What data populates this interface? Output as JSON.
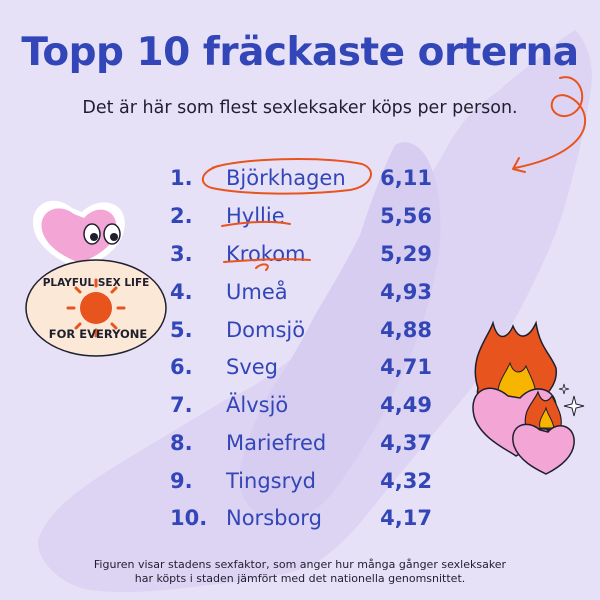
{
  "title": "Topp 10 fräckaste orterna",
  "subtitle": "Det är här som flest sexleksaker köps per person.",
  "rows": [
    {
      "rank": "1.",
      "city": "Björkhagen",
      "value": "6,11"
    },
    {
      "rank": "2.",
      "city": "Hyllie",
      "value": "5,56"
    },
    {
      "rank": "3.",
      "city": "Krokom",
      "value": "5,29"
    },
    {
      "rank": "4.",
      "city": "Umeå",
      "value": "4,93"
    },
    {
      "rank": "5.",
      "city": "Domsjö",
      "value": "4,88"
    },
    {
      "rank": "6.",
      "city": "Sveg",
      "value": "4,71"
    },
    {
      "rank": "7.",
      "city": "Älvsjö",
      "value": "4,49"
    },
    {
      "rank": "8.",
      "city": "Mariefred",
      "value": "4,37"
    },
    {
      "rank": "9.",
      "city": "Tingsryd",
      "value": "4,32"
    },
    {
      "rank": "10.",
      "city": "Norsborg",
      "value": "4,17"
    }
  ],
  "footnote": {
    "line1": "Figuren visar stadens sexfaktor, som anger hur många gånger sexleksaker",
    "line2": "har köpts i staden jämfört med det nationella genomsnittet."
  },
  "sticker": {
    "line1": "PLAYFUL SEX LIFE",
    "line2": "FOR EVERYONE"
  },
  "colors": {
    "background": "#e7e1f8",
    "accent_blue": "#3346b8",
    "accent_orange": "#e8541e",
    "heart_pink": "#f3a6d6"
  }
}
